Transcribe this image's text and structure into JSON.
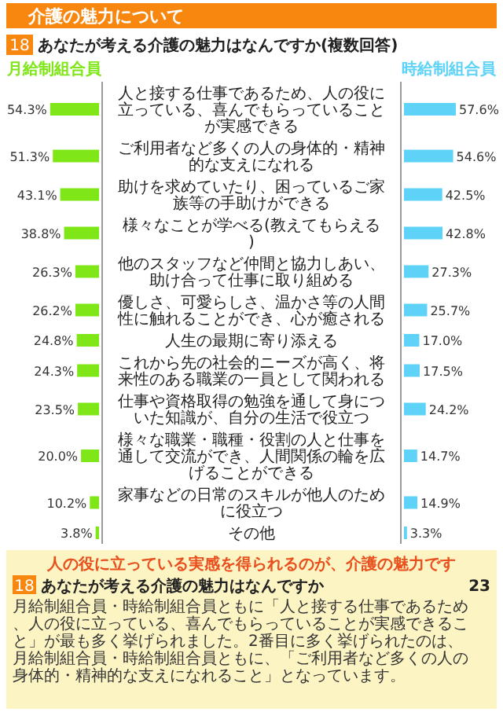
{
  "chart_data": [
    {
      "type": "bar",
      "orientation": "horizontal",
      "title": "あなたが考える介護の魅力はなんですか(複数回答)",
      "tick_labels": false,
      "categories": [
        "人と接する仕事であるため、人の役に立っている、喜んでもらっていることが実感できる",
        "ご利用者など多くの人の身体的・精神的な支えになれる",
        "助けを求めていたり、困っているご家族等の手助けができる",
        "様々なことが学べる(教えてもらえる)",
        "他のスタッフなど仲間と協力しあい、助け合って仕事に取り組める",
        "優しさ、可愛らしさ、温かさ等の人間性に触れることができ、心が癒される",
        "人生の最期に寄り添える",
        "これから先の社会的ニーズが高く、将来性のある職業の一員として関われる",
        "仕事や資格取得の勉強を通して身についた知識が、自分の生活で役立つ",
        "様々な職業・職種・役割の人と仕事を通して交流ができ、人間関係の輪を広げることができる",
        "家事などの日常のスキルが他人のために役立つ",
        "その他"
      ],
      "series": [
        {
          "name": "月給制組合員",
          "color": "#7fe617",
          "values": [
            54.3,
            51.3,
            43.1,
            38.8,
            26.3,
            26.2,
            24.8,
            24.3,
            23.5,
            20.0,
            10.2,
            3.8
          ],
          "value_labels": [
            "54.3%",
            "51.3%",
            "43.1%",
            "38.8%",
            "26.3%",
            "26.2%",
            "24.8%",
            "24.3%",
            "23.5%",
            "20.0%",
            "10.2%",
            "3.8%"
          ]
        }
      ],
      "annotations": [
        "介護の魅力について",
        "18",
        "人の役に立っている実感を得られるのが、介護の魅力です",
        "18",
        "あなたが考える介護の魅力はなんですか",
        "月給制組合員・時給制組合員ともに「人と接する仕事であるため、人の役に立っている、喜んでもらっていることが実感できること」が最も多く挙げられました。2番目に多く挙げられたのは、月給制組合員・時給制組合員ともに、「ご利用者など多くの人の身体的・精神的な支えになれること」となっています。",
        "23"
      ]
    },
    {
      "type": "bar",
      "orientation": "horizontal",
      "categories": [
        "人と接する仕事であるため、人の役に立っている、喜んでもらっていることが実感できる",
        "ご利用者など多くの人の身体的・精神的な支えになれる",
        "助けを求めていたり、困っているご家族等の手助けができる",
        "様々なことが学べる(教えてもらえる)",
        "他のスタッフなど仲間と協力しあい、助け合って仕事に取り組める",
        "優しさ、可愛らしさ、温かさ等の人間性に触れることができ、心が癒される",
        "人生の最期に寄り添える",
        "これから先の社会的ニーズが高く、将来性のある職業の一員として関われる",
        "仕事や資格取得の勉強を通して身についた知識が、自分の生活で役立つ",
        "様々な職業・職種・役割の人と仕事を通して交流ができ、人間関係の輪を広げることができる",
        "家事などの日常のスキルが他人のために役立つ",
        "その他"
      ],
      "series": [
        {
          "name": "時給制組合員",
          "color": "#5fd3f7",
          "values": [
            57.6,
            54.6,
            42.5,
            42.8,
            27.3,
            25.7,
            17.0,
            17.5,
            24.2,
            14.7,
            14.9,
            3.3
          ],
          "value_labels": [
            "57.6%",
            "54.6%",
            "42.5%",
            "42.8%",
            "27.3%",
            "25.7%",
            "17.0%",
            "17.5%",
            "24.2%",
            "14.7%",
            "14.9%",
            "3.3%"
          ]
        }
      ]
    }
  ]
}
